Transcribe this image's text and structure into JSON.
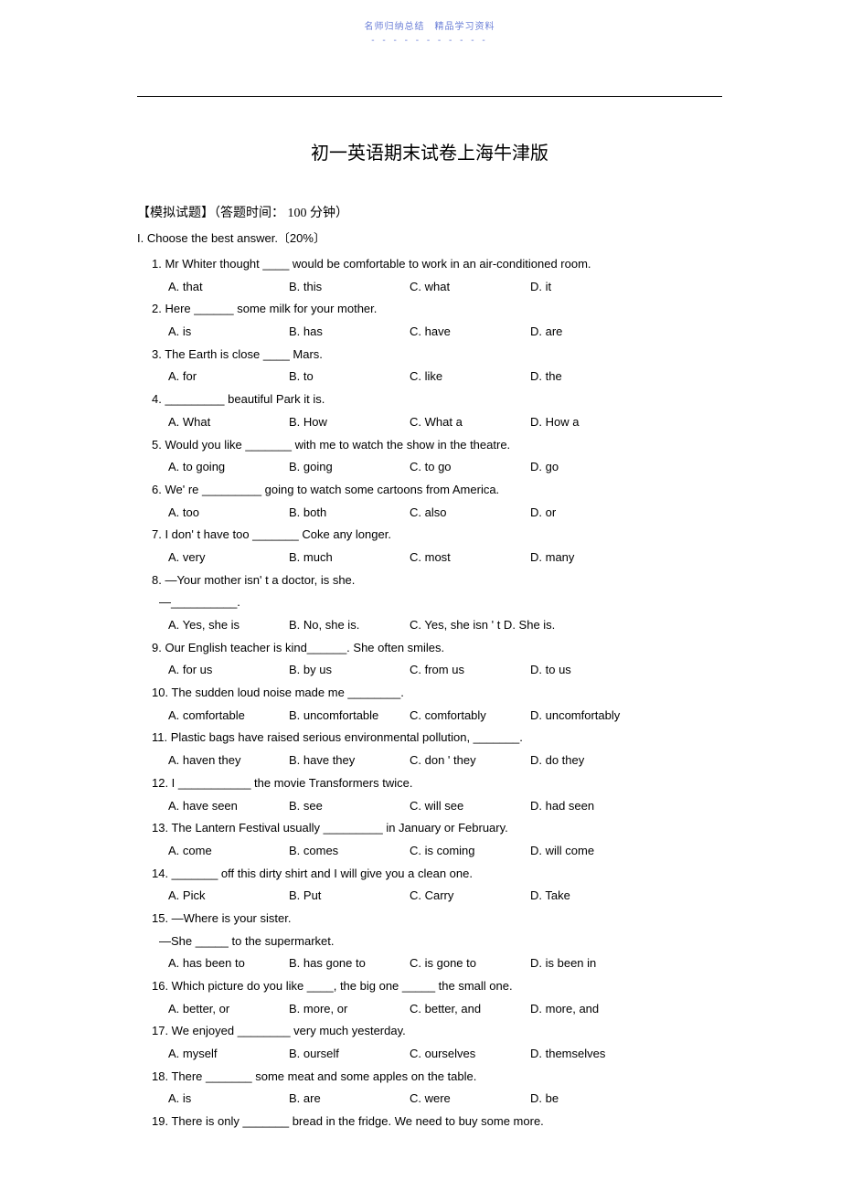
{
  "header": {
    "label": "名师归纳总结　精品学习资料",
    "dashes": "- - - - - - - - - - -"
  },
  "title": "初一英语期末试卷上海牛津版",
  "subtitle": "【模拟试题】（答题时间： 100 分钟）",
  "section": "I. Choose the best answer.〔20%〕",
  "questions": [
    {
      "num": "1",
      "text": "Mr Whiter thought ____ would be comfortable to work in an air-conditioned room.",
      "opts": [
        "A. that",
        "B. this",
        "C. what",
        "D. it"
      ]
    },
    {
      "num": "2",
      "text": "Here ______ some milk for your mother.",
      "opts": [
        "A. is",
        "B. has",
        "C. have",
        "D. are"
      ]
    },
    {
      "num": "3",
      "text": "The Earth is close ____ Mars.",
      "opts": [
        "A. for",
        "B. to",
        "C. like",
        "D. the"
      ]
    },
    {
      "num": "4",
      "text": "_________ beautiful Park it is.",
      "opts": [
        "A. What",
        "B. How",
        "C. What a",
        "D. How a"
      ]
    },
    {
      "num": "5",
      "text": "Would you like _______ with me to watch the show in the theatre.",
      "opts": [
        "A. to going",
        "B. going",
        "C. to go",
        "D. go"
      ]
    },
    {
      "num": "6",
      "text": "We' re _________ going to watch some cartoons from America.",
      "opts": [
        "A. too",
        "B. both",
        "C. also",
        "D. or"
      ]
    },
    {
      "num": "7",
      "text": "I don' t have too _______ Coke any longer.",
      "opts": [
        "A. very",
        "B. much",
        "C. most",
        "D. many"
      ]
    },
    {
      "num": "8",
      "text": "—Your mother isn' t a doctor, is she.",
      "sub": "—__________.",
      "opts": [
        "A. Yes, she is",
        "B. No, she is.",
        "C. Yes, she isn '  t D. She is."
      ]
    },
    {
      "num": "9",
      "text": "Our English teacher is kind______. She often smiles.",
      "opts": [
        "A. for us",
        "B. by us",
        "C. from us",
        "D. to us"
      ]
    },
    {
      "num": "10",
      "text": "The sudden loud noise made me ________.",
      "opts": [
        "A. comfortable",
        "B. uncomfortable",
        "C. comfortably",
        "D. uncomfortably"
      ]
    },
    {
      "num": "11",
      "text": "Plastic bags have raised serious environmental pollution, _______.",
      "opts": [
        "A. haven   they",
        "B. have they",
        "C. don ' they",
        "D. do they"
      ]
    },
    {
      "num": "12",
      "text": "I ___________ the movie Transformers twice.",
      "opts": [
        "A. have seen",
        "B. see",
        "C. will see",
        "D. had seen"
      ]
    },
    {
      "num": "13",
      "text": "The Lantern Festival usually _________ in January or February.",
      "opts": [
        "A. come",
        "B. comes",
        "C. is coming",
        "D. will come"
      ]
    },
    {
      "num": "14",
      "text": "_______ off this dirty shirt and I will give you a clean one.",
      "opts": [
        "A. Pick",
        "B. Put",
        "C. Carry",
        "D. Take"
      ]
    },
    {
      "num": "15",
      "text": "—Where is your sister.",
      "sub": "—She _____ to the supermarket.",
      "opts": [
        "A. has been to",
        "B. has gone to",
        "C. is gone to",
        "D. is been in"
      ]
    },
    {
      "num": "16",
      "text": "Which picture do you like ____, the big one _____ the small one.",
      "opts": [
        "A. better, or",
        "B. more, or",
        "C. better, and",
        "D. more, and"
      ]
    },
    {
      "num": "17",
      "text": "We enjoyed ________ very much yesterday.",
      "opts": [
        "A. myself",
        "B. ourself",
        "C. ourselves",
        "D. themselves"
      ]
    },
    {
      "num": "18",
      "text": "There _______ some meat and some apples on the table.",
      "opts": [
        "A. is",
        "B. are",
        "C. were",
        "D. be"
      ]
    },
    {
      "num": "19",
      "text": "There is only _______ bread in the fridge. We need to buy some more.",
      "opts": null
    }
  ]
}
